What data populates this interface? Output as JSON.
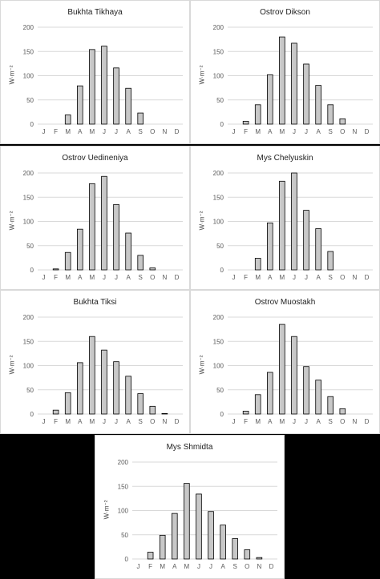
{
  "chart_data": [
    {
      "type": "bar",
      "title": "Bukhta  Tikhaya",
      "ylabel": "W·m⁻²",
      "categories": [
        "J",
        "F",
        "M",
        "A",
        "M",
        "J",
        "J",
        "A",
        "S",
        "O",
        "N",
        "D"
      ],
      "values": [
        0,
        0,
        19,
        79,
        154,
        161,
        116,
        74,
        23,
        0,
        0,
        0
      ],
      "ylim": [
        0,
        200
      ],
      "yticks": [
        "0",
        "50",
        "100",
        "150",
        "200"
      ],
      "grid": true
    },
    {
      "type": "bar",
      "title": "Ostrov Dikson",
      "ylabel": "W·m⁻²",
      "categories": [
        "J",
        "F",
        "M",
        "A",
        "M",
        "J",
        "J",
        "A",
        "S",
        "O",
        "N",
        "D"
      ],
      "values": [
        0,
        6,
        40,
        102,
        180,
        167,
        124,
        80,
        40,
        11,
        0,
        0
      ],
      "ylim": [
        0,
        200
      ],
      "yticks": [
        "0",
        "50",
        "100",
        "150",
        "200"
      ],
      "grid": true
    },
    {
      "type": "bar",
      "title": "Ostrov Uedineniya",
      "ylabel": "W·m⁻²",
      "categories": [
        "J",
        "F",
        "M",
        "A",
        "M",
        "J",
        "J",
        "A",
        "S",
        "O",
        "N",
        "D"
      ],
      "values": [
        0,
        2,
        36,
        84,
        178,
        193,
        135,
        76,
        30,
        4,
        0,
        0
      ],
      "ylim": [
        0,
        200
      ],
      "yticks": [
        "0",
        "50",
        "100",
        "150",
        "200"
      ],
      "grid": true
    },
    {
      "type": "bar",
      "title": "Mys Chelyuskin",
      "ylabel": "W·m⁻²",
      "categories": [
        "J",
        "F",
        "M",
        "A",
        "M",
        "J",
        "J",
        "A",
        "S",
        "O",
        "N",
        "D"
      ],
      "values": [
        0,
        0,
        24,
        97,
        183,
        200,
        123,
        85,
        38,
        0,
        0,
        0
      ],
      "ylim": [
        0,
        200
      ],
      "yticks": [
        "0",
        "50",
        "100",
        "150",
        "200"
      ],
      "grid": true
    },
    {
      "type": "bar",
      "title": "Bukhta Tiksi",
      "ylabel": "W·m⁻²",
      "categories": [
        "J",
        "F",
        "M",
        "A",
        "M",
        "J",
        "J",
        "A",
        "S",
        "O",
        "N",
        "D"
      ],
      "values": [
        0,
        8,
        44,
        106,
        160,
        132,
        108,
        78,
        42,
        16,
        1,
        0
      ],
      "ylim": [
        0,
        200
      ],
      "yticks": [
        "0",
        "50",
        "100",
        "150",
        "200"
      ],
      "grid": true
    },
    {
      "type": "bar",
      "title": "Ostrov Muostakh",
      "ylabel": "W·m⁻²",
      "categories": [
        "J",
        "F",
        "M",
        "A",
        "M",
        "J",
        "J",
        "A",
        "S",
        "O",
        "N",
        "D"
      ],
      "values": [
        0,
        6,
        40,
        86,
        185,
        160,
        98,
        70,
        36,
        11,
        0,
        0
      ],
      "ylim": [
        0,
        200
      ],
      "yticks": [
        "0",
        "50",
        "100",
        "150",
        "200"
      ],
      "grid": true
    },
    {
      "type": "bar",
      "title": "Mys Shmidta",
      "ylabel": "W·m⁻²",
      "categories": [
        "J",
        "F",
        "M",
        "A",
        "M",
        "J",
        "J",
        "A",
        "S",
        "O",
        "N",
        "D"
      ],
      "values": [
        0,
        14,
        49,
        94,
        156,
        134,
        98,
        70,
        42,
        19,
        3,
        0
      ],
      "ylim": [
        0,
        200
      ],
      "yticks": [
        "0",
        "50",
        "100",
        "150",
        "200"
      ],
      "grid": true
    }
  ],
  "colors": {
    "background": "#000000",
    "panel": "#ffffff",
    "bar_fill": "#c8c8c8",
    "bar_stroke": "#000000",
    "grid": "#d9d9d9",
    "axis_text": "#595959"
  }
}
